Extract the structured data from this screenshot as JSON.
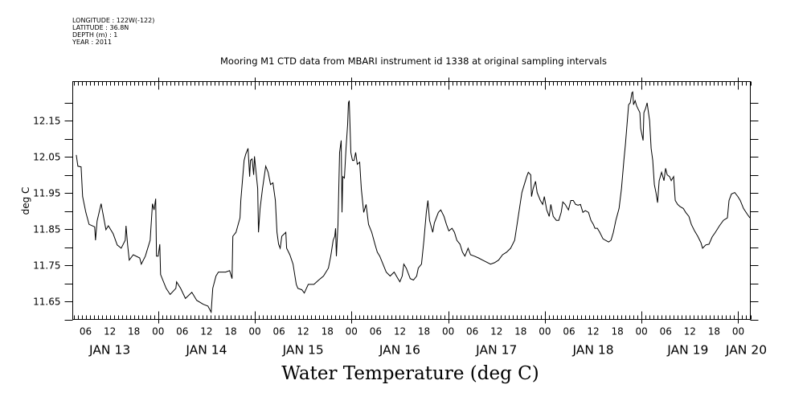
{
  "meta": {
    "lines": [
      "LONGITUDE : 122W(-122)",
      "LATITUDE : 36.8N",
      "DEPTH (m) : 1",
      "YEAR : 2011"
    ]
  },
  "chart_data": {
    "type": "line",
    "title": "Mooring M1 CTD data from MBARI instrument id 1338 at original sampling intervals",
    "subtitle": "Water Temperature (deg C)",
    "xlabel": "",
    "ylabel": "deg C",
    "x_units": "hours since JAN 13 2011 00:00",
    "xlim": [
      2.8,
      171.0
    ],
    "ylim": [
      11.6,
      12.258
    ],
    "grid": false,
    "legend": "none",
    "y_ticks": [
      11.65,
      11.75,
      11.85,
      11.95,
      12.05,
      12.15
    ],
    "y_tick_labels": [
      "11.65",
      "11.75",
      "11.85",
      "11.95",
      "12.05",
      "12.15"
    ],
    "y_minor_ticks": [
      11.6,
      11.7,
      11.8,
      11.9,
      12.0,
      12.1,
      12.2
    ],
    "x_hour_ticks": [
      6,
      12,
      18,
      24,
      30,
      36,
      42,
      48,
      54,
      60,
      66,
      72,
      78,
      84,
      90,
      96,
      102,
      108,
      114,
      120,
      126,
      132,
      138,
      144,
      150,
      156,
      162,
      168
    ],
    "x_hour_tick_labels": [
      "06",
      "12",
      "18",
      "00",
      "06",
      "12",
      "18",
      "00",
      "06",
      "12",
      "18",
      "00",
      "06",
      "12",
      "18",
      "00",
      "06",
      "12",
      "18",
      "00",
      "06",
      "12",
      "18",
      "00",
      "06",
      "12",
      "18",
      "00"
    ],
    "x_day_labels": [
      {
        "hour": 12,
        "label": "JAN 13"
      },
      {
        "hour": 36,
        "label": "JAN 14"
      },
      {
        "hour": 60,
        "label": "JAN 15"
      },
      {
        "hour": 84,
        "label": "JAN 16"
      },
      {
        "hour": 108,
        "label": "JAN 17"
      },
      {
        "hour": 132,
        "label": "JAN 18"
      },
      {
        "hour": 155.5,
        "label": "JAN 19"
      },
      {
        "hour": 170,
        "label": "JAN 20"
      }
    ],
    "series": [
      {
        "name": "Water Temperature",
        "color": "#000000",
        "points": [
          [
            3.67,
            12.055
          ],
          [
            4.07,
            12.024
          ],
          [
            4.87,
            12.022
          ],
          [
            5.26,
            11.94
          ],
          [
            6.06,
            11.896
          ],
          [
            6.86,
            11.863
          ],
          [
            8.25,
            11.856
          ],
          [
            8.45,
            11.819
          ],
          [
            8.85,
            11.872
          ],
          [
            9.85,
            11.92
          ],
          [
            11.04,
            11.848
          ],
          [
            11.64,
            11.859
          ],
          [
            12.84,
            11.837
          ],
          [
            13.83,
            11.806
          ],
          [
            14.83,
            11.797
          ],
          [
            15.83,
            11.819
          ],
          [
            16.03,
            11.859
          ],
          [
            16.43,
            11.806
          ],
          [
            16.82,
            11.764
          ],
          [
            17.82,
            11.779
          ],
          [
            19.42,
            11.77
          ],
          [
            19.81,
            11.753
          ],
          [
            20.81,
            11.775
          ],
          [
            22.01,
            11.819
          ],
          [
            22.6,
            11.92
          ],
          [
            23.0,
            11.903
          ],
          [
            23.4,
            11.934
          ],
          [
            23.6,
            11.775
          ],
          [
            24.0,
            11.775
          ],
          [
            24.4,
            11.808
          ],
          [
            24.6,
            11.724
          ],
          [
            25.99,
            11.686
          ],
          [
            26.99,
            11.669
          ],
          [
            28.39,
            11.686
          ],
          [
            28.58,
            11.704
          ],
          [
            29.58,
            11.686
          ],
          [
            30.78,
            11.658
          ],
          [
            32.37,
            11.675
          ],
          [
            33.57,
            11.653
          ],
          [
            35.16,
            11.642
          ],
          [
            36.36,
            11.637
          ],
          [
            37.16,
            11.62
          ],
          [
            37.55,
            11.686
          ],
          [
            38.35,
            11.72
          ],
          [
            38.95,
            11.731
          ],
          [
            40.74,
            11.731
          ],
          [
            41.74,
            11.735
          ],
          [
            42.34,
            11.713
          ],
          [
            42.54,
            11.83
          ],
          [
            43.33,
            11.841
          ],
          [
            44.33,
            11.881
          ],
          [
            44.53,
            11.929
          ],
          [
            45.33,
            12.04
          ],
          [
            45.73,
            12.057
          ],
          [
            46.32,
            12.073
          ],
          [
            46.72,
            11.995
          ],
          [
            46.92,
            12.04
          ],
          [
            47.32,
            12.044
          ],
          [
            47.72,
            12.0
          ],
          [
            47.92,
            12.051
          ],
          [
            48.72,
            11.962
          ],
          [
            48.92,
            11.841
          ],
          [
            49.31,
            11.907
          ],
          [
            49.91,
            11.962
          ],
          [
            50.71,
            12.024
          ],
          [
            51.31,
            12.007
          ],
          [
            51.91,
            11.973
          ],
          [
            52.5,
            11.978
          ],
          [
            53.1,
            11.929
          ],
          [
            53.5,
            11.841
          ],
          [
            53.9,
            11.808
          ],
          [
            54.3,
            11.797
          ],
          [
            54.7,
            11.83
          ],
          [
            55.69,
            11.841
          ],
          [
            55.89,
            11.797
          ],
          [
            56.69,
            11.779
          ],
          [
            57.49,
            11.753
          ],
          [
            58.28,
            11.697
          ],
          [
            58.68,
            11.686
          ],
          [
            59.68,
            11.682
          ],
          [
            60.28,
            11.673
          ],
          [
            61.27,
            11.697
          ],
          [
            62.67,
            11.697
          ],
          [
            63.86,
            11.709
          ],
          [
            65.06,
            11.72
          ],
          [
            66.26,
            11.742
          ],
          [
            66.85,
            11.775
          ],
          [
            67.45,
            11.819
          ],
          [
            67.85,
            11.83
          ],
          [
            68.05,
            11.852
          ],
          [
            68.25,
            11.775
          ],
          [
            68.65,
            11.863
          ],
          [
            69.05,
            12.062
          ],
          [
            69.45,
            12.095
          ],
          [
            69.65,
            11.896
          ],
          [
            69.84,
            11.995
          ],
          [
            70.24,
            11.991
          ],
          [
            70.64,
            12.073
          ],
          [
            71.04,
            12.139
          ],
          [
            71.24,
            12.199
          ],
          [
            71.44,
            12.205
          ],
          [
            71.84,
            12.062
          ],
          [
            72.24,
            12.04
          ],
          [
            72.63,
            12.04
          ],
          [
            73.03,
            12.062
          ],
          [
            73.43,
            12.029
          ],
          [
            74.03,
            12.035
          ],
          [
            74.43,
            11.962
          ],
          [
            75.03,
            11.896
          ],
          [
            75.62,
            11.918
          ],
          [
            76.22,
            11.863
          ],
          [
            77.02,
            11.841
          ],
          [
            77.82,
            11.808
          ],
          [
            78.41,
            11.786
          ],
          [
            79.01,
            11.775
          ],
          [
            79.81,
            11.753
          ],
          [
            80.61,
            11.731
          ],
          [
            81.6,
            11.72
          ],
          [
            82.6,
            11.731
          ],
          [
            83.4,
            11.715
          ],
          [
            84.0,
            11.704
          ],
          [
            84.59,
            11.72
          ],
          [
            84.99,
            11.753
          ],
          [
            85.59,
            11.742
          ],
          [
            86.59,
            11.713
          ],
          [
            87.38,
            11.709
          ],
          [
            88.18,
            11.72
          ],
          [
            88.58,
            11.742
          ],
          [
            89.38,
            11.753
          ],
          [
            89.97,
            11.819
          ],
          [
            90.57,
            11.896
          ],
          [
            90.97,
            11.929
          ],
          [
            91.37,
            11.874
          ],
          [
            92.17,
            11.841
          ],
          [
            92.57,
            11.867
          ],
          [
            93.56,
            11.896
          ],
          [
            94.16,
            11.903
          ],
          [
            94.96,
            11.885
          ],
          [
            95.56,
            11.863
          ],
          [
            96.15,
            11.845
          ],
          [
            96.95,
            11.852
          ],
          [
            97.55,
            11.841
          ],
          [
            98.15,
            11.819
          ],
          [
            98.94,
            11.808
          ],
          [
            99.54,
            11.786
          ],
          [
            100.14,
            11.775
          ],
          [
            100.94,
            11.797
          ],
          [
            101.54,
            11.779
          ],
          [
            102.53,
            11.775
          ],
          [
            103.53,
            11.77
          ],
          [
            104.53,
            11.764
          ],
          [
            106.52,
            11.753
          ],
          [
            107.52,
            11.757
          ],
          [
            108.51,
            11.764
          ],
          [
            109.51,
            11.779
          ],
          [
            110.51,
            11.786
          ],
          [
            111.5,
            11.797
          ],
          [
            112.5,
            11.819
          ],
          [
            113.1,
            11.863
          ],
          [
            113.69,
            11.907
          ],
          [
            114.29,
            11.951
          ],
          [
            114.89,
            11.973
          ],
          [
            115.49,
            11.995
          ],
          [
            115.89,
            12.007
          ],
          [
            116.48,
            12.0
          ],
          [
            116.68,
            11.94
          ],
          [
            117.08,
            11.962
          ],
          [
            117.68,
            11.982
          ],
          [
            118.08,
            11.951
          ],
          [
            118.88,
            11.929
          ],
          [
            119.47,
            11.918
          ],
          [
            119.87,
            11.94
          ],
          [
            120.47,
            11.903
          ],
          [
            121.07,
            11.885
          ],
          [
            121.47,
            11.918
          ],
          [
            122.07,
            11.885
          ],
          [
            122.86,
            11.874
          ],
          [
            123.46,
            11.874
          ],
          [
            124.06,
            11.896
          ],
          [
            124.46,
            11.925
          ],
          [
            125.05,
            11.918
          ],
          [
            125.85,
            11.903
          ],
          [
            126.45,
            11.929
          ],
          [
            127.05,
            11.929
          ],
          [
            127.65,
            11.918
          ],
          [
            128.24,
            11.916
          ],
          [
            128.84,
            11.918
          ],
          [
            129.44,
            11.896
          ],
          [
            130.04,
            11.901
          ],
          [
            130.83,
            11.896
          ],
          [
            131.43,
            11.874
          ],
          [
            132.03,
            11.863
          ],
          [
            132.43,
            11.852
          ],
          [
            133.03,
            11.852
          ],
          [
            133.63,
            11.841
          ],
          [
            134.42,
            11.823
          ],
          [
            135.02,
            11.819
          ],
          [
            135.82,
            11.814
          ],
          [
            136.42,
            11.819
          ],
          [
            137.01,
            11.841
          ],
          [
            137.61,
            11.874
          ],
          [
            138.41,
            11.907
          ],
          [
            139.01,
            11.962
          ],
          [
            139.61,
            12.04
          ],
          [
            140.0,
            12.084
          ],
          [
            140.4,
            12.139
          ],
          [
            140.8,
            12.194
          ],
          [
            141.2,
            12.199
          ],
          [
            141.6,
            12.227
          ],
          [
            141.8,
            12.229
          ],
          [
            142.0,
            12.194
          ],
          [
            142.4,
            12.205
          ],
          [
            142.8,
            12.19
          ],
          [
            143.59,
            12.172
          ],
          [
            143.79,
            12.128
          ],
          [
            144.19,
            12.106
          ],
          [
            144.39,
            12.095
          ],
          [
            144.59,
            12.172
          ],
          [
            144.99,
            12.183
          ],
          [
            145.39,
            12.199
          ],
          [
            145.99,
            12.15
          ],
          [
            146.38,
            12.073
          ],
          [
            146.78,
            12.04
          ],
          [
            147.18,
            11.973
          ],
          [
            147.58,
            11.951
          ],
          [
            147.98,
            11.923
          ],
          [
            148.38,
            11.984
          ],
          [
            148.97,
            12.007
          ],
          [
            149.57,
            11.984
          ],
          [
            149.97,
            12.018
          ],
          [
            150.37,
            12.0
          ],
          [
            150.97,
            11.995
          ],
          [
            151.37,
            11.984
          ],
          [
            151.96,
            11.995
          ],
          [
            152.36,
            11.929
          ],
          [
            152.96,
            11.918
          ],
          [
            153.56,
            11.912
          ],
          [
            154.36,
            11.907
          ],
          [
            154.95,
            11.896
          ],
          [
            155.75,
            11.885
          ],
          [
            156.35,
            11.863
          ],
          [
            157.15,
            11.845
          ],
          [
            157.95,
            11.83
          ],
          [
            158.74,
            11.812
          ],
          [
            159.14,
            11.797
          ],
          [
            159.94,
            11.806
          ],
          [
            160.74,
            11.808
          ],
          [
            161.53,
            11.828
          ],
          [
            162.33,
            11.841
          ],
          [
            163.33,
            11.859
          ],
          [
            164.32,
            11.874
          ],
          [
            165.32,
            11.881
          ],
          [
            165.72,
            11.929
          ],
          [
            166.32,
            11.947
          ],
          [
            167.12,
            11.951
          ],
          [
            167.91,
            11.94
          ],
          [
            168.51,
            11.929
          ],
          [
            169.31,
            11.907
          ],
          [
            170.31,
            11.89
          ],
          [
            170.91,
            11.881
          ]
        ]
      }
    ]
  }
}
